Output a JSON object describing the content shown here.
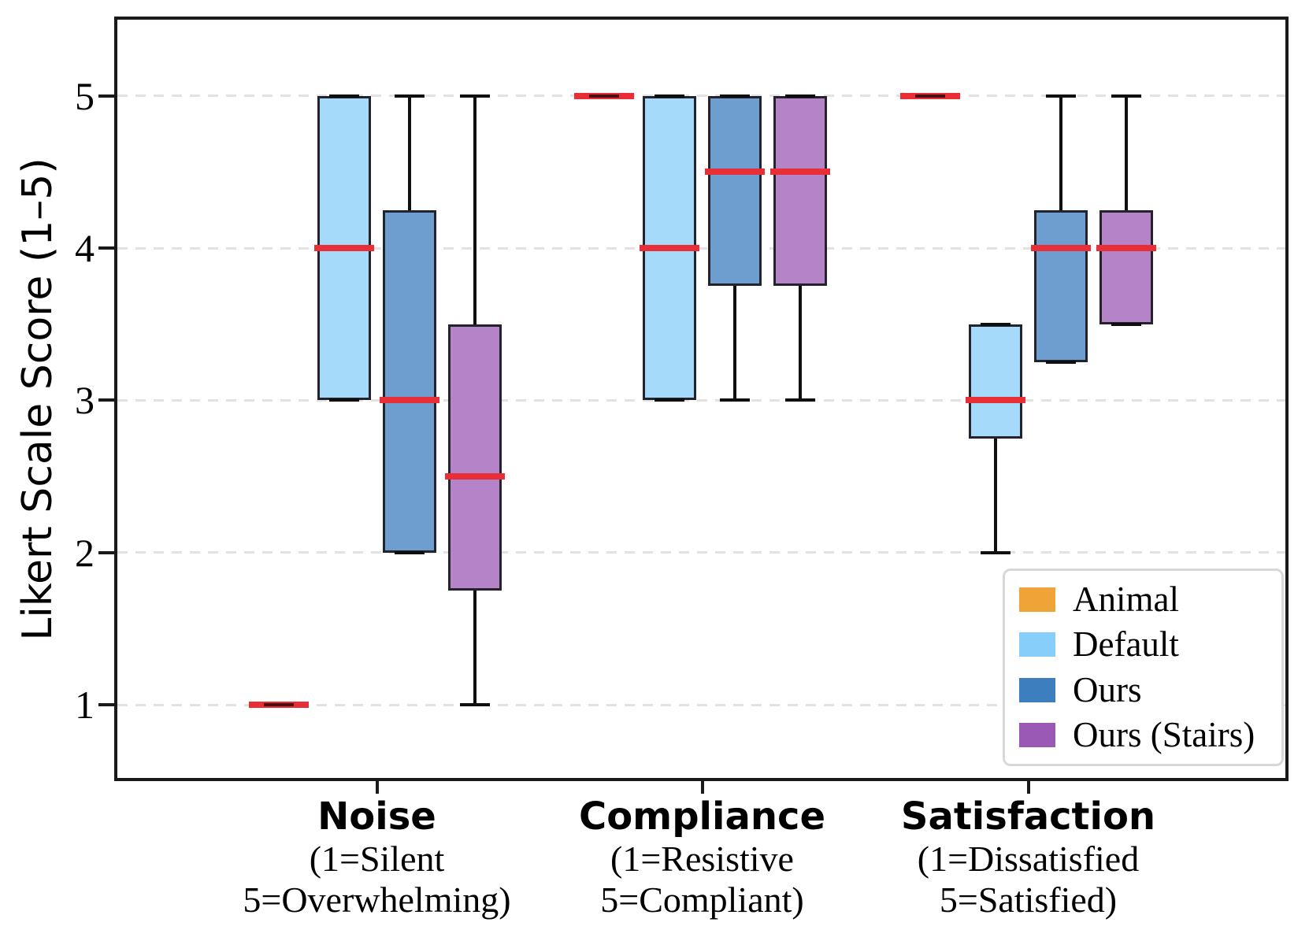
{
  "colors": {
    "median_red": "#E82F38",
    "box_edge": "#23232B",
    "whisker_black": "#0F0F0F",
    "gridline_gray": "#E2E2E2",
    "spine_black": "#1A1A1A",
    "legend_border": "#D8D8D8",
    "background": "#FFFFFF"
  },
  "chart_data": {
    "type": "boxplot",
    "ylabel": "Likert Scale Score (1–5)",
    "ylim": [
      0.5,
      5.52
    ],
    "yticks": [
      1,
      2,
      3,
      4,
      5
    ],
    "grid": "horizontal dashed",
    "legend_position": "lower right",
    "groups": [
      {
        "label": "Noise",
        "sublines": [
          "(1=Silent",
          "5=Overwhelming)"
        ]
      },
      {
        "label": "Compliance",
        "sublines": [
          "(1=Resistive",
          "5=Compliant)"
        ]
      },
      {
        "label": "Satisfaction",
        "sublines": [
          "(1=Dissatisfied",
          "5=Satisfied)"
        ]
      }
    ],
    "series": [
      {
        "name": "Animal",
        "color": "#F0A437",
        "fill": "#F6C983"
      },
      {
        "name": "Default",
        "color": "#87CEFA",
        "fill": "#A5DAFB"
      },
      {
        "name": "Ours",
        "color": "#3D7EBF",
        "fill": "#6D9ECF"
      },
      {
        "name": "Ours (Stairs)",
        "color": "#9B59B6",
        "fill": "#B483C8"
      }
    ],
    "boxes": [
      {
        "group": "Noise",
        "series": "Animal",
        "lo": 1,
        "q1": 1,
        "median": 1,
        "q3": 1,
        "hi": 1
      },
      {
        "group": "Noise",
        "series": "Default",
        "lo": 3,
        "q1": 3,
        "median": 4,
        "q3": 5,
        "hi": 5
      },
      {
        "group": "Noise",
        "series": "Ours",
        "lo": 2,
        "q1": 2,
        "median": 3,
        "q3": 4.25,
        "hi": 5
      },
      {
        "group": "Noise",
        "series": "Ours (Stairs)",
        "lo": 1,
        "q1": 1.75,
        "median": 2.5,
        "q3": 3.5,
        "hi": 5
      },
      {
        "group": "Compliance",
        "series": "Animal",
        "lo": 5,
        "q1": 5,
        "median": 5,
        "q3": 5,
        "hi": 5
      },
      {
        "group": "Compliance",
        "series": "Default",
        "lo": 3,
        "q1": 3,
        "median": 4,
        "q3": 5,
        "hi": 5
      },
      {
        "group": "Compliance",
        "series": "Ours",
        "lo": 3,
        "q1": 3.75,
        "median": 4.5,
        "q3": 5,
        "hi": 5
      },
      {
        "group": "Compliance",
        "series": "Ours (Stairs)",
        "lo": 3,
        "q1": 3.75,
        "median": 4.5,
        "q3": 5,
        "hi": 5
      },
      {
        "group": "Satisfaction",
        "series": "Animal",
        "lo": 5,
        "q1": 5,
        "median": 5,
        "q3": 5,
        "hi": 5
      },
      {
        "group": "Satisfaction",
        "series": "Default",
        "lo": 2,
        "q1": 2.75,
        "median": 3,
        "q3": 3.5,
        "hi": 3.5
      },
      {
        "group": "Satisfaction",
        "series": "Ours",
        "lo": 3.25,
        "q1": 3.25,
        "median": 4,
        "q3": 4.25,
        "hi": 5
      },
      {
        "group": "Satisfaction",
        "series": "Ours (Stairs)",
        "lo": 3.5,
        "q1": 3.5,
        "median": 4,
        "q3": 4.25,
        "hi": 5
      }
    ]
  }
}
